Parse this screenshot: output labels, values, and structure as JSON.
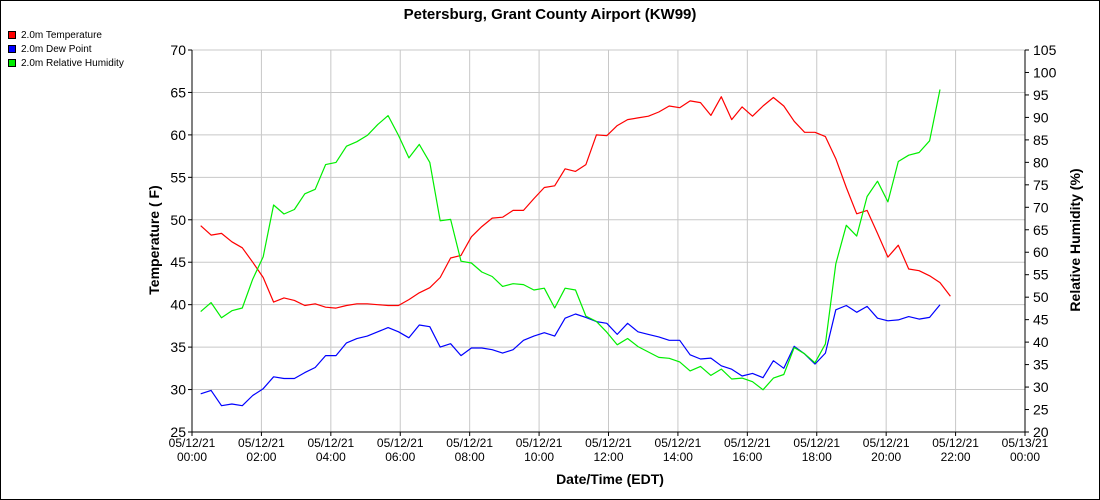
{
  "chart_data": {
    "type": "line",
    "title": "Petersburg, Grant County Airport (KW99)",
    "xlabel": "Date/Time (EDT)",
    "ylabel": "Temperature ( F)",
    "y2label": "Relative Humidity (%)",
    "xlim": [
      0,
      24
    ],
    "ylim": [
      25,
      70
    ],
    "y2lim": [
      20,
      105
    ],
    "grid": true,
    "legend": "top-left",
    "x_ticks": [
      {
        "hour": 0,
        "line1": "05/12/21",
        "line2": "00:00"
      },
      {
        "hour": 2,
        "line1": "05/12/21",
        "line2": "02:00"
      },
      {
        "hour": 4,
        "line1": "05/12/21",
        "line2": "04:00"
      },
      {
        "hour": 6,
        "line1": "05/12/21",
        "line2": "06:00"
      },
      {
        "hour": 8,
        "line1": "05/12/21",
        "line2": "08:00"
      },
      {
        "hour": 10,
        "line1": "05/12/21",
        "line2": "10:00"
      },
      {
        "hour": 12,
        "line1": "05/12/21",
        "line2": "12:00"
      },
      {
        "hour": 14,
        "line1": "05/12/21",
        "line2": "14:00"
      },
      {
        "hour": 16,
        "line1": "05/12/21",
        "line2": "16:00"
      },
      {
        "hour": 18,
        "line1": "05/12/21",
        "line2": "18:00"
      },
      {
        "hour": 20,
        "line1": "05/12/21",
        "line2": "20:00"
      },
      {
        "hour": 22,
        "line1": "05/12/21",
        "line2": "22:00"
      },
      {
        "hour": 24,
        "line1": "05/13/21",
        "line2": "00:00"
      }
    ],
    "y_ticks": [
      25,
      30,
      35,
      40,
      45,
      50,
      55,
      60,
      65,
      70
    ],
    "y2_ticks": [
      20,
      25,
      30,
      35,
      40,
      45,
      50,
      55,
      60,
      65,
      70,
      75,
      80,
      85,
      90,
      95,
      100,
      105
    ],
    "series": [
      {
        "name": "2.0m Temperature",
        "color": "#ff0000",
        "axis": "left",
        "points": [
          [
            0.25,
            49.3
          ],
          [
            0.55,
            48.2
          ],
          [
            0.85,
            48.4
          ],
          [
            1.15,
            47.4
          ],
          [
            1.45,
            46.7
          ],
          [
            1.75,
            45
          ],
          [
            2.05,
            43.2
          ],
          [
            2.35,
            40.3
          ],
          [
            2.65,
            40.8
          ],
          [
            2.95,
            40.5
          ],
          [
            3.25,
            39.9
          ],
          [
            3.55,
            40.1
          ],
          [
            3.85,
            39.7
          ],
          [
            4.15,
            39.6
          ],
          [
            4.45,
            39.9
          ],
          [
            4.75,
            40.1
          ],
          [
            5.05,
            40.1
          ],
          [
            5.35,
            40
          ],
          [
            5.65,
            39.9
          ],
          [
            5.95,
            39.9
          ],
          [
            6.25,
            40.6
          ],
          [
            6.55,
            41.4
          ],
          [
            6.85,
            42
          ],
          [
            7.15,
            43.2
          ],
          [
            7.45,
            45.5
          ],
          [
            7.75,
            45.8
          ],
          [
            8.05,
            48
          ],
          [
            8.35,
            49.2
          ],
          [
            8.65,
            50.2
          ],
          [
            8.95,
            50.3
          ],
          [
            9.25,
            51.1
          ],
          [
            9.55,
            51.1
          ],
          [
            9.85,
            52.5
          ],
          [
            10.15,
            53.8
          ],
          [
            10.45,
            54
          ],
          [
            10.75,
            56
          ],
          [
            11.05,
            55.7
          ],
          [
            11.35,
            56.5
          ],
          [
            11.65,
            60
          ],
          [
            11.95,
            59.9
          ],
          [
            12.25,
            61.1
          ],
          [
            12.55,
            61.8
          ],
          [
            12.85,
            62
          ],
          [
            13.15,
            62.2
          ],
          [
            13.45,
            62.7
          ],
          [
            13.75,
            63.4
          ],
          [
            14.05,
            63.2
          ],
          [
            14.35,
            64
          ],
          [
            14.65,
            63.8
          ],
          [
            14.95,
            62.3
          ],
          [
            15.25,
            64.5
          ],
          [
            15.55,
            61.8
          ],
          [
            15.85,
            63.3
          ],
          [
            16.15,
            62.2
          ],
          [
            16.45,
            63.4
          ],
          [
            16.75,
            64.4
          ],
          [
            17.05,
            63.4
          ],
          [
            17.35,
            61.6
          ],
          [
            17.65,
            60.3
          ],
          [
            17.95,
            60.3
          ],
          [
            18.25,
            59.8
          ],
          [
            18.55,
            57.2
          ],
          [
            18.85,
            53.8
          ],
          [
            19.15,
            50.7
          ],
          [
            19.45,
            51.1
          ],
          [
            19.75,
            48.4
          ],
          [
            20.05,
            45.6
          ],
          [
            20.35,
            47
          ],
          [
            20.65,
            44.2
          ],
          [
            20.95,
            44
          ],
          [
            21.25,
            43.4
          ],
          [
            21.55,
            42.6
          ],
          [
            21.85,
            41
          ]
        ]
      },
      {
        "name": "2.0m Dew Point",
        "color": "#0000ff",
        "axis": "left",
        "points": [
          [
            0.25,
            29.5
          ],
          [
            0.55,
            29.9
          ],
          [
            0.85,
            28.1
          ],
          [
            1.15,
            28.3
          ],
          [
            1.45,
            28.1
          ],
          [
            1.75,
            29.3
          ],
          [
            2.05,
            30.1
          ],
          [
            2.35,
            31.5
          ],
          [
            2.65,
            31.3
          ],
          [
            2.95,
            31.3
          ],
          [
            3.25,
            32
          ],
          [
            3.55,
            32.6
          ],
          [
            3.85,
            34
          ],
          [
            4.15,
            34
          ],
          [
            4.45,
            35.5
          ],
          [
            4.75,
            36
          ],
          [
            5.05,
            36.3
          ],
          [
            5.35,
            36.8
          ],
          [
            5.65,
            37.3
          ],
          [
            5.95,
            36.8
          ],
          [
            6.25,
            36.1
          ],
          [
            6.55,
            37.6
          ],
          [
            6.85,
            37.4
          ],
          [
            7.15,
            35
          ],
          [
            7.45,
            35.4
          ],
          [
            7.75,
            34
          ],
          [
            8.05,
            34.9
          ],
          [
            8.35,
            34.9
          ],
          [
            8.65,
            34.7
          ],
          [
            8.95,
            34.3
          ],
          [
            9.25,
            34.7
          ],
          [
            9.55,
            35.8
          ],
          [
            9.85,
            36.3
          ],
          [
            10.15,
            36.7
          ],
          [
            10.45,
            36.3
          ],
          [
            10.75,
            38.4
          ],
          [
            11.05,
            38.9
          ],
          [
            11.35,
            38.5
          ],
          [
            11.65,
            38
          ],
          [
            11.95,
            37.8
          ],
          [
            12.25,
            36.5
          ],
          [
            12.55,
            37.8
          ],
          [
            12.85,
            36.8
          ],
          [
            13.15,
            36.5
          ],
          [
            13.45,
            36.2
          ],
          [
            13.75,
            35.8
          ],
          [
            14.05,
            35.8
          ],
          [
            14.35,
            34.1
          ],
          [
            14.65,
            33.6
          ],
          [
            14.95,
            33.7
          ],
          [
            15.25,
            32.8
          ],
          [
            15.55,
            32.4
          ],
          [
            15.85,
            31.6
          ],
          [
            16.15,
            31.9
          ],
          [
            16.45,
            31.4
          ],
          [
            16.75,
            33.4
          ],
          [
            17.05,
            32.5
          ],
          [
            17.35,
            35.1
          ],
          [
            17.65,
            34.2
          ],
          [
            17.95,
            33
          ],
          [
            18.25,
            34.3
          ],
          [
            18.55,
            39.4
          ],
          [
            18.85,
            39.9
          ],
          [
            19.15,
            39.1
          ],
          [
            19.45,
            39.8
          ],
          [
            19.75,
            38.4
          ],
          [
            20.05,
            38.1
          ],
          [
            20.35,
            38.2
          ],
          [
            20.65,
            38.6
          ],
          [
            20.95,
            38.3
          ],
          [
            21.25,
            38.5
          ],
          [
            21.55,
            40
          ]
        ]
      },
      {
        "name": "2.0m Relative Humidity",
        "color": "#00ee00",
        "axis": "right",
        "points": [
          [
            0.25,
            46.8
          ],
          [
            0.55,
            48.8
          ],
          [
            0.85,
            45.4
          ],
          [
            1.15,
            47
          ],
          [
            1.45,
            47.6
          ],
          [
            1.75,
            54
          ],
          [
            2.05,
            59
          ],
          [
            2.35,
            70.5
          ],
          [
            2.65,
            68.5
          ],
          [
            2.95,
            69.5
          ],
          [
            3.25,
            73
          ],
          [
            3.55,
            74
          ],
          [
            3.85,
            79.5
          ],
          [
            4.15,
            80
          ],
          [
            4.45,
            83.6
          ],
          [
            4.75,
            84.6
          ],
          [
            5.05,
            86
          ],
          [
            5.35,
            88.4
          ],
          [
            5.65,
            90.4
          ],
          [
            5.95,
            86
          ],
          [
            6.25,
            81
          ],
          [
            6.55,
            84
          ],
          [
            6.85,
            80
          ],
          [
            7.15,
            67
          ],
          [
            7.45,
            67.3
          ],
          [
            7.75,
            58
          ],
          [
            8.05,
            57.6
          ],
          [
            8.35,
            55.6
          ],
          [
            8.65,
            54.6
          ],
          [
            8.95,
            52.4
          ],
          [
            9.25,
            53
          ],
          [
            9.55,
            52.8
          ],
          [
            9.85,
            51.6
          ],
          [
            10.15,
            52
          ],
          [
            10.45,
            47.6
          ],
          [
            10.75,
            52
          ],
          [
            11.05,
            51.6
          ],
          [
            11.35,
            45.8
          ],
          [
            11.65,
            44.6
          ],
          [
            11.95,
            42.2
          ],
          [
            12.25,
            39.4
          ],
          [
            12.55,
            40.8
          ],
          [
            12.85,
            39
          ],
          [
            13.15,
            37.8
          ],
          [
            13.45,
            36.6
          ],
          [
            13.75,
            36.4
          ],
          [
            14.05,
            35.6
          ],
          [
            14.35,
            33.6
          ],
          [
            14.65,
            34.6
          ],
          [
            14.95,
            32.6
          ],
          [
            15.25,
            34
          ],
          [
            15.55,
            31.8
          ],
          [
            15.85,
            32
          ],
          [
            16.15,
            31.2
          ],
          [
            16.45,
            29.4
          ],
          [
            16.75,
            32
          ],
          [
            17.05,
            32.8
          ],
          [
            17.35,
            38.8
          ],
          [
            17.65,
            37.4
          ],
          [
            17.95,
            35.4
          ],
          [
            18.25,
            39.6
          ],
          [
            18.55,
            57.4
          ],
          [
            18.85,
            66
          ],
          [
            19.15,
            63.6
          ],
          [
            19.45,
            72.4
          ],
          [
            19.75,
            75.8
          ],
          [
            20.05,
            71.2
          ],
          [
            20.35,
            80.2
          ],
          [
            20.65,
            81.6
          ],
          [
            20.95,
            82.2
          ],
          [
            21.25,
            84.8
          ],
          [
            21.55,
            96.2
          ]
        ]
      }
    ]
  }
}
